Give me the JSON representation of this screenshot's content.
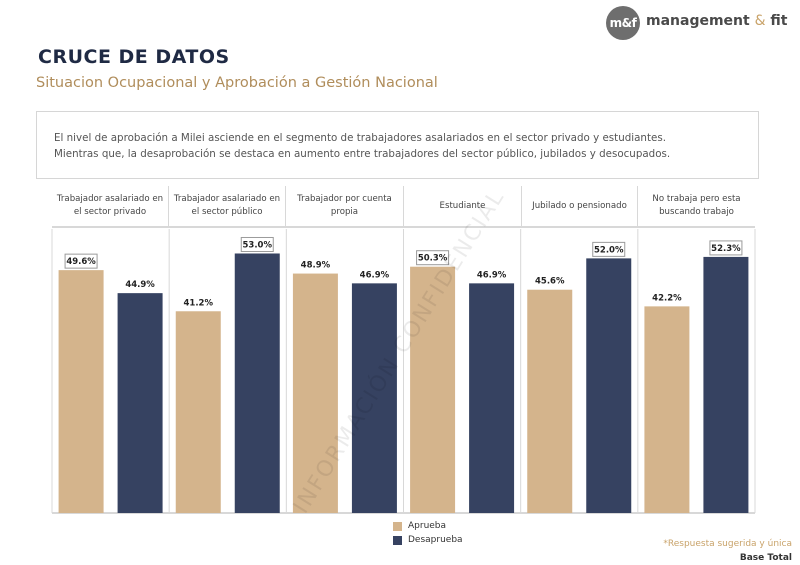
{
  "brand": {
    "logo_mark": "m&f",
    "name_part1": "management",
    "name_amp": "&",
    "name_part2": "fit"
  },
  "title": "CRUCE DE DATOS",
  "subtitle": "Situacion Ocupacional y Aprobación a Gestión Nacional",
  "summary": {
    "line1": "El nivel de aprobación a Milei asciende en el segmento de trabajadores asalariados en el sector privado y estudiantes.",
    "line2": "Mientras que, la desaprobación se destaca en aumento entre trabajadores del sector público, jubilados y desocupados."
  },
  "watermark": "INFORMACIÓN CONFIDENCIAL",
  "colors": {
    "aprueba": "#d4b48c",
    "desaprueba": "#364261",
    "accent": "#b08d5b",
    "title": "#1f2a44"
  },
  "chart_data": {
    "type": "bar",
    "categories": [
      "Trabajador asalariado en el sector privado",
      "Trabajador asalariado en el sector público",
      "Trabajador por cuenta propia",
      "Estudiante",
      "Jubilado o pensionado",
      "No trabaja pero esta buscando trabajo"
    ],
    "series": [
      {
        "name": "Aprueba",
        "values": [
          49.6,
          41.2,
          48.9,
          50.3,
          45.6,
          42.2
        ],
        "labels": [
          "49.6%",
          "41.2%",
          "48.9%",
          "50.3%",
          "45.6%",
          "42.2%"
        ]
      },
      {
        "name": "Desaprueba",
        "values": [
          44.9,
          53.0,
          46.9,
          46.9,
          52.0,
          52.3
        ],
        "labels": [
          "44.9%",
          "53.0%",
          "46.9%",
          "46.9%",
          "52.0%",
          "52.3%"
        ]
      }
    ],
    "highlighted_labels": [
      [
        true,
        false
      ],
      [
        false,
        true
      ],
      [
        false,
        false
      ],
      [
        true,
        false
      ],
      [
        false,
        true
      ],
      [
        false,
        true
      ]
    ],
    "ylim": [
      0,
      58
    ],
    "legend": [
      "Aprueba",
      "Desaprueba"
    ]
  },
  "notes": {
    "suggested": "*Respuesta sugerida y única",
    "base": "Base Total"
  }
}
